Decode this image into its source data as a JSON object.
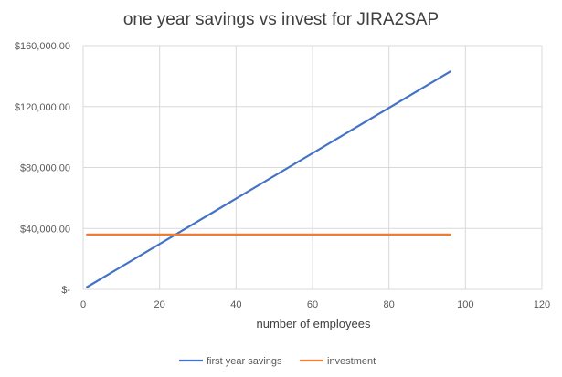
{
  "chart_data": {
    "type": "line",
    "title": "one year savings vs invest for JIRA2SAP",
    "xlabel": "number of employees",
    "ylabel": "",
    "xlim": [
      0,
      120
    ],
    "ylim": [
      0,
      160000
    ],
    "x_ticks": [
      {
        "value": 0,
        "label": "0"
      },
      {
        "value": 20,
        "label": "20"
      },
      {
        "value": 40,
        "label": "40"
      },
      {
        "value": 60,
        "label": "60"
      },
      {
        "value": 80,
        "label": "80"
      },
      {
        "value": 100,
        "label": "100"
      },
      {
        "value": 120,
        "label": "120"
      }
    ],
    "y_ticks": [
      {
        "value": 0,
        "label": "$-"
      },
      {
        "value": 40000,
        "label": "$40,000.00"
      },
      {
        "value": 80000,
        "label": "$80,000.00"
      },
      {
        "value": 120000,
        "label": "$120,000.00"
      },
      {
        "value": 160000,
        "label": "$160,000.00"
      }
    ],
    "grid": true,
    "legend_position": "bottom",
    "series": [
      {
        "name": "first year savings",
        "color": "#4472C4",
        "points": [
          {
            "x": 1,
            "y": 1500
          },
          {
            "x": 96,
            "y": 143000
          }
        ]
      },
      {
        "name": "investment",
        "color": "#ED7D31",
        "points": [
          {
            "x": 1,
            "y": 36000
          },
          {
            "x": 96,
            "y": 36000
          }
        ]
      }
    ]
  }
}
